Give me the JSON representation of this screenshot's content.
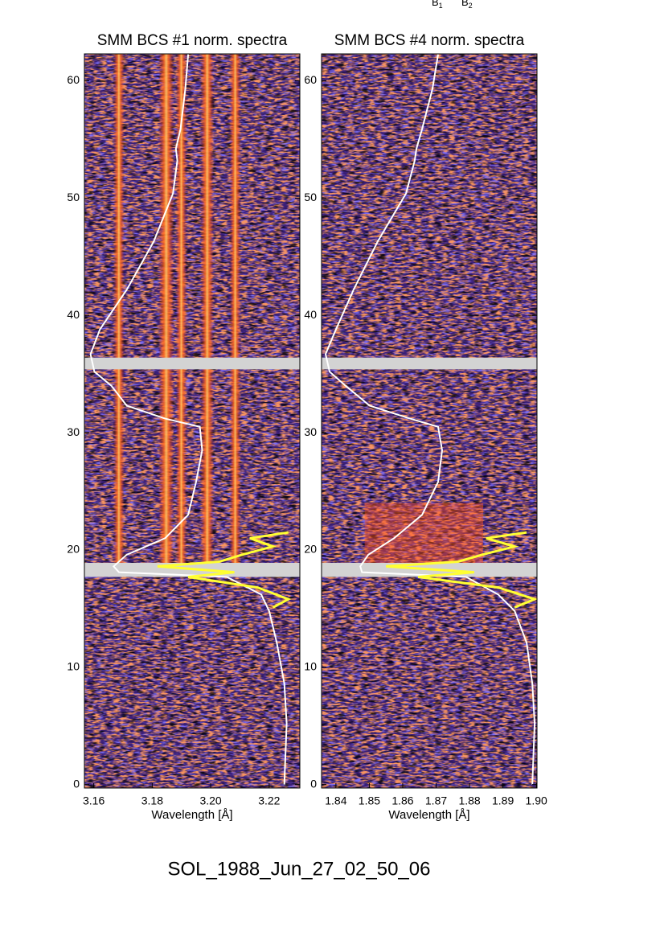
{
  "chart_data": [
    {
      "type": "line",
      "title": "SMM BCS #1 norm. spectra",
      "x_label": "Wavelength [Å]",
      "xlim": [
        3.1568,
        3.2305
      ],
      "xticks": [
        3.16,
        3.18,
        {
          "value": 3.2,
          "label": "3.20"
        },
        3.22
      ],
      "ylim": [
        -0.3,
        62.3
      ],
      "yticks": [
        0,
        10,
        20,
        30,
        40,
        50,
        60
      ],
      "bands": [
        [
          35.4,
          36.4
        ],
        [
          17.7,
          18.9
        ]
      ],
      "band_color": "#d3d3d3",
      "series": [
        {
          "color": "#ffffff",
          "x": [
            3.1923,
            3.1913,
            3.1897,
            3.1881,
            3.1886,
            3.1871,
            3.1805,
            3.1713,
            3.1621,
            3.1589,
            3.1602,
            3.166,
            3.1713,
            3.1844,
            3.1963,
            3.1971,
            3.195,
            3.1923,
            3.1844,
            3.1713,
            3.1668,
            3.1686,
            3.2055,
            3.2173,
            3.22,
            3.2226,
            3.2252,
            3.226,
            3.2252
          ],
          "values": [
            62.26,
            59.3,
            55.9,
            54.2,
            53.2,
            50.4,
            46.3,
            42.2,
            38.8,
            36.7,
            35.2,
            34.0,
            32.3,
            31.2,
            30.5,
            28.5,
            25.8,
            23.0,
            21.0,
            19.6,
            18.6,
            18.1,
            17.7,
            16.2,
            14.8,
            12.1,
            8.6,
            5.2,
            0
          ]
        },
        {
          "color": "#ffff33",
          "x": [
            3.2266,
            3.2134,
            3.2213,
            3.2108,
            3.2029,
            3.1818,
            3.2081,
            3.1923,
            3.216,
            3.2266,
            3.2213
          ],
          "values": [
            21.5,
            21.0,
            20.3,
            19.6,
            19.0,
            18.6,
            18.1,
            17.7,
            16.8,
            15.8,
            15.1
          ]
        }
      ]
    },
    {
      "type": "line",
      "title": "SMM BCS #4 norm. spectra",
      "x_label": "Wavelength [Å]",
      "xlim": [
        1.8357,
        1.9002
      ],
      "xticks": [
        1.84,
        1.85,
        1.86,
        1.87,
        1.88,
        1.89,
        {
          "value": 1.9,
          "label": "1.90"
        }
      ],
      "ylim": [
        -0.3,
        62.3
      ],
      "yticks": [
        0,
        10,
        20,
        30,
        40,
        50,
        60
      ],
      "bands": [
        [
          35.4,
          36.4
        ],
        [
          17.7,
          18.9
        ]
      ],
      "band_color": "#d3d3d3",
      "series": [
        {
          "color": "#ffffff",
          "x": [
            1.8706,
            1.8689,
            1.8658,
            1.8641,
            1.8636,
            1.861,
            1.8525,
            1.8453,
            1.84,
            1.8369,
            1.8381,
            1.8429,
            1.8501,
            1.8622,
            1.8706,
            1.8718,
            1.8706,
            1.8658,
            1.8574,
            1.8497,
            1.8473,
            1.8478,
            1.879,
            1.8886,
            1.8935,
            1.8971,
            1.8988,
            1.8995,
            1.8988
          ],
          "values": [
            62.26,
            59.3,
            55.9,
            54.2,
            53.2,
            50.4,
            46.3,
            42.2,
            38.8,
            36.7,
            35.2,
            34.0,
            32.3,
            31.2,
            30.5,
            28.5,
            25.8,
            23.0,
            21.0,
            19.6,
            18.6,
            18.1,
            17.7,
            16.2,
            14.8,
            12.1,
            8.6,
            5.2,
            0
          ]
        },
        {
          "color": "#ffff33",
          "x": [
            1.8971,
            1.885,
            1.8935,
            1.8838,
            1.8766,
            1.855,
            1.8814,
            1.8646,
            1.8886,
            1.8995,
            1.8935
          ],
          "values": [
            21.5,
            21.0,
            20.3,
            19.6,
            19.0,
            18.6,
            18.1,
            17.7,
            16.8,
            15.8,
            15.1
          ]
        }
      ]
    }
  ],
  "annotations": [
    {
      "text": "B",
      "sub": "1"
    },
    {
      "text": "B",
      "sub": "2"
    }
  ],
  "footer": "SOL_1988_Jun_27_02_50_06"
}
